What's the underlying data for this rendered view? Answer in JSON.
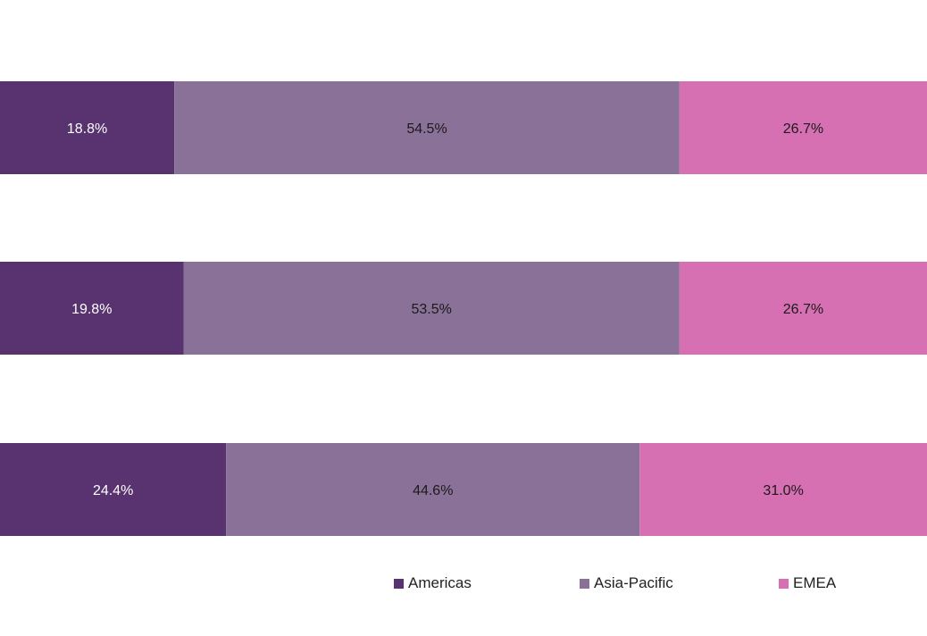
{
  "chart_data": {
    "type": "bar",
    "orientation": "horizontal",
    "stacked": true,
    "percent": true,
    "categories": [
      "",
      "",
      ""
    ],
    "series": [
      {
        "name": "Americas",
        "values": [
          18.8,
          19.8,
          24.4
        ],
        "labels": [
          "18.8%",
          "19.8%",
          "24.4%"
        ]
      },
      {
        "name": "Asia-Pacific",
        "values": [
          54.5,
          53.5,
          44.6
        ],
        "labels": [
          "54.5%",
          "53.5%",
          "44.6%"
        ]
      },
      {
        "name": "EMEA",
        "values": [
          26.7,
          26.7,
          31.0
        ],
        "labels": [
          "26.7%",
          "26.7%",
          "31.0%"
        ]
      }
    ],
    "xlim": [
      0,
      100
    ],
    "grid": false,
    "legend_position": "bottom",
    "colors": [
      "#58336f",
      "#8a7198",
      "#d770b2"
    ],
    "label_colors": [
      "#ffffff",
      "#1a1a1a",
      "#1a1a1a"
    ]
  }
}
